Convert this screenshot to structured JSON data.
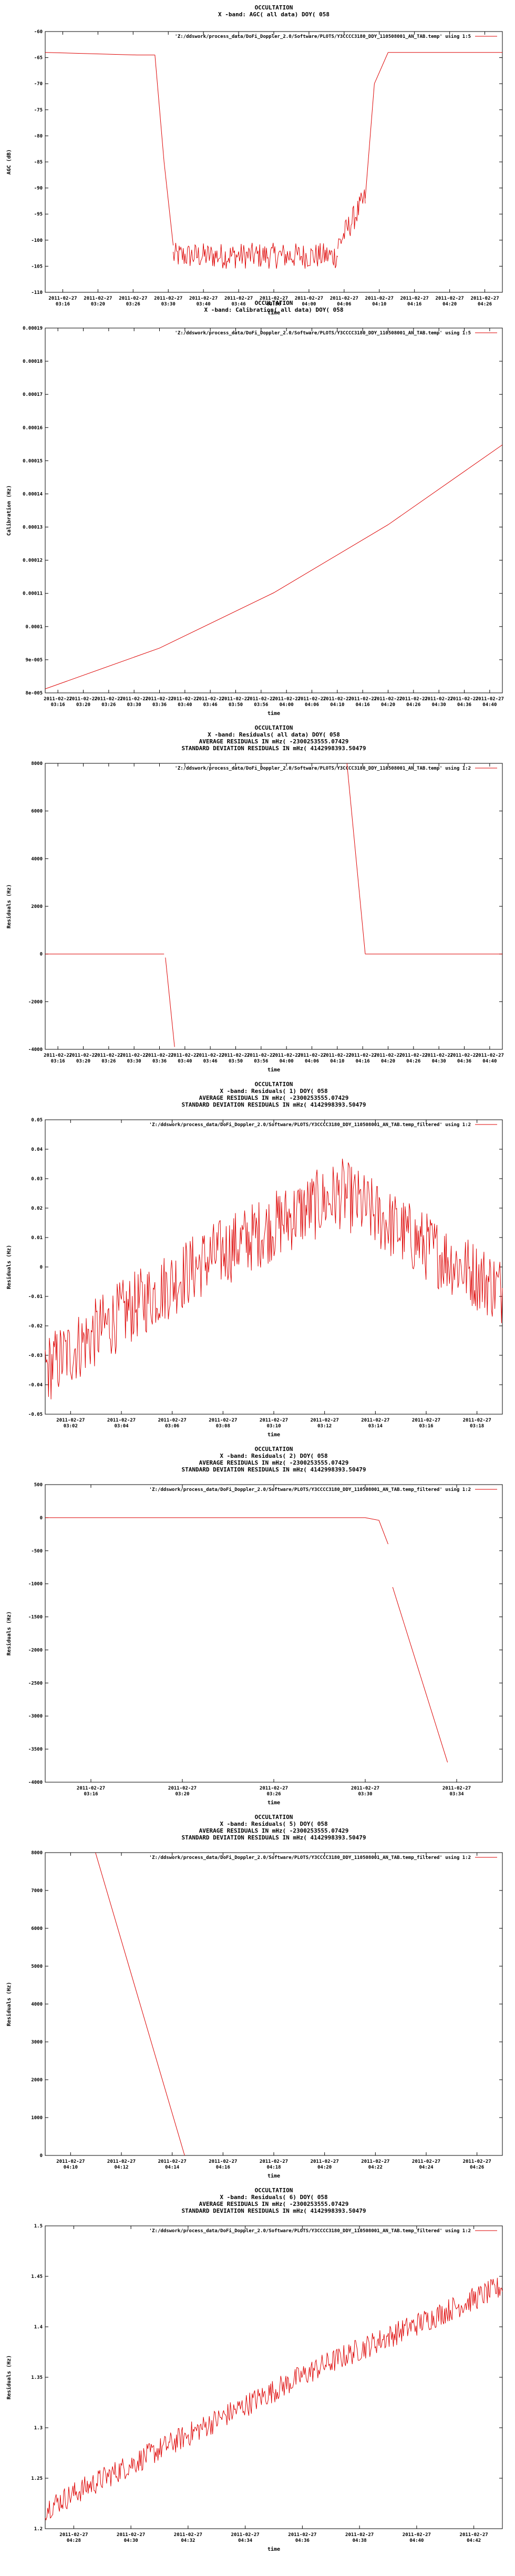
{
  "chart_data": [
    {
      "type": "line",
      "title_lines": [
        "OCCULTATION",
        "X -band: AGC( all data) DOY( 058"
      ],
      "xlabel": "time",
      "ylabel": "AGC (dB)",
      "legend_label": "'Z:/ddswork/process_data/DoFi_Doppler_2.0/Software/PLOTS/Y3CCCC3180_DDY_110508001_AN_TAB.temp' using 1:5",
      "x_tick_labels": [
        [
          "2011-02-27",
          "03:16"
        ],
        [
          "2011-02-27",
          "03:20"
        ],
        [
          "2011-02-27",
          "03:26"
        ],
        [
          "2011-02-27",
          "03:30"
        ],
        [
          "2011-02-27",
          "03:40"
        ],
        [
          "2011-02-27",
          "03:46"
        ],
        [
          "2011-02-27",
          "03:56"
        ],
        [
          "2011-02-27",
          "04:00"
        ],
        [
          "2011-02-27",
          "04:06"
        ],
        [
          "2011-02-27",
          "04:10"
        ],
        [
          "2011-02-27",
          "04:16"
        ],
        [
          "2011-02-27",
          "04:20"
        ],
        [
          "2011-02-27",
          "04:26"
        ]
      ],
      "y_tick_labels": [
        "-110",
        "-105",
        "-100",
        "-95",
        "-90",
        "-85",
        "-80",
        "-75",
        "-70",
        "-65",
        "-60"
      ],
      "ylim": [
        -110,
        -60
      ],
      "series": [
        {
          "segments": [
            {
              "x": [
                0.0,
                0.2,
                0.24
              ],
              "y": [
                -64,
                -64.5,
                -64.5
              ]
            },
            {
              "x": [
                0.24,
                0.26,
                0.28
              ],
              "y": [
                -64.5,
                -85,
                -101
              ]
            },
            {
              "x": [
                0.28,
                0.64
              ],
              "y": [
                -103,
                -103
              ],
              "noise": 2.5
            },
            {
              "x": [
                0.64,
                0.7
              ],
              "y": [
                -101,
                -92
              ],
              "noise": 2.5
            },
            {
              "x": [
                0.7,
                0.72,
                0.75
              ],
              "y": [
                -92,
                -70,
                -64
              ]
            },
            {
              "x": [
                0.75,
                1.0
              ],
              "y": [
                -64,
                -64
              ]
            }
          ]
        }
      ]
    },
    {
      "type": "line",
      "title_lines": [
        "OCCULTATION",
        "X -band: Calibration( all data) DOY( 058"
      ],
      "xlabel": "time",
      "ylabel": "Calibration (Hz)",
      "legend_label": "'Z:/ddswork/process_data/DoFi_Doppler_2.0/Software/PLOTS/Y3CCCC3180_DDY_110508001_AN_TAB.temp' using 1:5",
      "x_tick_labels": [
        [
          "2011-02-27",
          "03:16"
        ],
        [
          "2011-02-27",
          "03:20"
        ],
        [
          "2011-02-27",
          "03:26"
        ],
        [
          "2011-02-27",
          "03:30"
        ],
        [
          "2011-02-27",
          "03:36"
        ],
        [
          "2011-02-27",
          "03:40"
        ],
        [
          "2011-02-27",
          "03:46"
        ],
        [
          "2011-02-27",
          "03:50"
        ],
        [
          "2011-02-27",
          "03:56"
        ],
        [
          "2011-02-27",
          "04:00"
        ],
        [
          "2011-02-27",
          "04:06"
        ],
        [
          "2011-02-27",
          "04:10"
        ],
        [
          "2011-02-27",
          "04:16"
        ],
        [
          "2011-02-27",
          "04:20"
        ],
        [
          "2011-02-27",
          "04:26"
        ],
        [
          "2011-02-27",
          "04:30"
        ],
        [
          "2011-02-27",
          "04:36"
        ],
        [
          "2011-02-27",
          "04:40"
        ]
      ],
      "y_tick_labels": [
        "8e-005",
        "9e-005",
        "0.0001",
        "0.00011",
        "0.00012",
        "0.00013",
        "0.00014",
        "0.00015",
        "0.00016",
        "0.00017",
        "0.00018",
        "0.00019"
      ],
      "ylim": [
        8e-05,
        0.00019
      ],
      "series": [
        {
          "segments": [
            {
              "x": [
                0.0,
                0.25,
                0.5,
                0.75,
                1.0
              ],
              "y": [
                8.12e-05,
                9.35e-05,
                0.0001102,
                0.0001307,
                0.0001548
              ]
            }
          ]
        }
      ]
    },
    {
      "type": "line",
      "title_lines": [
        "OCCULTATION",
        "X -band: Residuals( all data) DOY( 058",
        "AVERAGE RESIDUALS IN mHz( -2300253555.07429",
        "STANDARD DEVIATION RESIDUALS IN mHz( 4142998393.50479"
      ],
      "xlabel": "time",
      "ylabel": "Residuals (Hz)",
      "legend_label": "'Z:/ddswork/process_data/DoFi_Doppler_2.0/Software/PLOTS/Y3CCCC3180_DDY_110508001_AN_TAB.temp' using 1:2",
      "x_tick_labels": [
        [
          "2011-02-27",
          "03:16"
        ],
        [
          "2011-02-27",
          "03:20"
        ],
        [
          "2011-02-27",
          "03:26"
        ],
        [
          "2011-02-27",
          "03:30"
        ],
        [
          "2011-02-27",
          "03:36"
        ],
        [
          "2011-02-27",
          "03:40"
        ],
        [
          "2011-02-27",
          "03:46"
        ],
        [
          "2011-02-27",
          "03:50"
        ],
        [
          "2011-02-27",
          "03:56"
        ],
        [
          "2011-02-27",
          "04:00"
        ],
        [
          "2011-02-27",
          "04:06"
        ],
        [
          "2011-02-27",
          "04:10"
        ],
        [
          "2011-02-27",
          "04:16"
        ],
        [
          "2011-02-27",
          "04:20"
        ],
        [
          "2011-02-27",
          "04:26"
        ],
        [
          "2011-02-27",
          "04:30"
        ],
        [
          "2011-02-27",
          "04:36"
        ],
        [
          "2011-02-27",
          "04:40"
        ]
      ],
      "y_tick_labels": [
        "-4000",
        "-2000",
        "0",
        "2000",
        "4000",
        "6000",
        "8000"
      ],
      "ylim": [
        -4000,
        8000
      ],
      "series": [
        {
          "segments": [
            {
              "x": [
                0.0,
                0.26
              ],
              "y": [
                0,
                0
              ]
            },
            {
              "x": [
                0.263,
                0.283
              ],
              "y": [
                -150,
                -3900
              ]
            },
            {
              "x": [
                0.66,
                0.7
              ],
              "y": [
                8000,
                0
              ]
            },
            {
              "x": [
                0.7,
                1.0
              ],
              "y": [
                0,
                0
              ]
            }
          ]
        }
      ]
    },
    {
      "type": "line",
      "title_lines": [
        "OCCULTATION",
        "X -band: Residuals( 1) DOY( 058",
        "AVERAGE RESIDUALS IN mHz( -2300253555.07429",
        "STANDARD DEVIATION RESIDUALS IN mHz( 4142998393.50479"
      ],
      "xlabel": "time",
      "ylabel": "Residuals (Hz)",
      "legend_label": "'Z:/ddswork/process_data/DoFi_Doppler_2.0/Software/PLOTS/Y3CCCC3180_DDY_110508001_AN_TAB.temp_filtered' using 1:2",
      "x_tick_labels": [
        [
          "2011-02-27",
          "03:02"
        ],
        [
          "2011-02-27",
          "03:04"
        ],
        [
          "2011-02-27",
          "03:06"
        ],
        [
          "2011-02-27",
          "03:08"
        ],
        [
          "2011-02-27",
          "03:10"
        ],
        [
          "2011-02-27",
          "03:12"
        ],
        [
          "2011-02-27",
          "03:14"
        ],
        [
          "2011-02-27",
          "03:16"
        ],
        [
          "2011-02-27",
          "03:18"
        ]
      ],
      "y_tick_labels": [
        "-0.05",
        "-0.04",
        "-0.03",
        "-0.02",
        "-0.01",
        "0",
        "0.01",
        "0.02",
        "0.03",
        "0.04",
        "0.05"
      ],
      "ylim": [
        -0.05,
        0.05
      ],
      "series": [
        {
          "segments": [
            {
              "x": [
                0.0,
                0.15,
                0.35,
                0.55,
                0.65,
                0.8,
                1.0
              ],
              "y": [
                -0.035,
                -0.018,
                0.002,
                0.018,
                0.025,
                0.01,
                -0.008
              ],
              "noise": 0.012
            }
          ]
        }
      ]
    },
    {
      "type": "line",
      "title_lines": [
        "OCCULTATION",
        "X -band: Residuals( 2) DOY( 058",
        "AVERAGE RESIDUALS IN mHz( -2300253555.07429",
        "STANDARD DEVIATION RESIDUALS IN mHz( 4142998393.50479"
      ],
      "xlabel": "time",
      "ylabel": "Residuals (Hz)",
      "legend_label": "'Z:/ddswork/process_data/DoFi_Doppler_2.0/Software/PLOTS/Y3CCCC3180_DDY_110508001_AN_TAB.temp_filtered' using 1:2",
      "x_tick_labels": [
        [
          "2011-02-27",
          "03:16"
        ],
        [
          "2011-02-27",
          "03:20"
        ],
        [
          "2011-02-27",
          "03:26"
        ],
        [
          "2011-02-27",
          "03:30"
        ],
        [
          "2011-02-27",
          "03:34"
        ]
      ],
      "y_tick_labels": [
        "-4000",
        "-3500",
        "-3000",
        "-2500",
        "-2000",
        "-1500",
        "-1000",
        "-500",
        "0",
        "500"
      ],
      "ylim": [
        -4000,
        500
      ],
      "series": [
        {
          "segments": [
            {
              "x": [
                0.0,
                0.7,
                0.73,
                0.75
              ],
              "y": [
                0,
                0,
                -40,
                -400
              ]
            },
            {
              "x": [
                0.76,
                0.88
              ],
              "y": [
                -1050,
                -3700
              ]
            }
          ]
        }
      ]
    },
    {
      "type": "line",
      "title_lines": [
        "OCCULTATION",
        "X -band: Residuals( 5) DOY( 058",
        "AVERAGE RESIDUALS IN mHz( -2300253555.07429",
        "STANDARD DEVIATION RESIDUALS IN mHz( 4142998393.50479"
      ],
      "xlabel": "time",
      "ylabel": "Residuals (Hz)",
      "legend_label": "'Z:/ddswork/process_data/DoFi_Doppler_2.0/Software/PLOTS/Y3CCCC3180_DDY_110508001_AN_TAB.temp_filtered' using 1:2",
      "x_tick_labels": [
        [
          "2011-02-27",
          "04:10"
        ],
        [
          "2011-02-27",
          "04:12"
        ],
        [
          "2011-02-27",
          "04:14"
        ],
        [
          "2011-02-27",
          "04:16"
        ],
        [
          "2011-02-27",
          "04:18"
        ],
        [
          "2011-02-27",
          "04:20"
        ],
        [
          "2011-02-27",
          "04:22"
        ],
        [
          "2011-02-27",
          "04:24"
        ],
        [
          "2011-02-27",
          "04:26"
        ]
      ],
      "y_tick_labels": [
        "0",
        "1000",
        "2000",
        "3000",
        "4000",
        "5000",
        "6000",
        "7000",
        "8000"
      ],
      "ylim": [
        0,
        8000
      ],
      "series": [
        {
          "segments": [
            {
              "x": [
                0.11,
                0.305
              ],
              "y": [
                8000,
                0
              ]
            }
          ]
        }
      ]
    },
    {
      "type": "line",
      "title_lines": [
        "OCCULTATION",
        "X -band: Residuals( 6) DOY( 058",
        "AVERAGE RESIDUALS IN mHz( -2300253555.07429",
        "STANDARD DEVIATION RESIDUALS IN mHz( 4142998393.50479"
      ],
      "xlabel": "time",
      "ylabel": "Residuals (Hz)",
      "legend_label": "'Z:/ddswork/process_data/DoFi_Doppler_2.0/Software/PLOTS/Y3CCCC3180_DDY_110508001_AN_TAB.temp_filtered' using 1:2",
      "x_tick_labels": [
        [
          "2011-02-27",
          "04:28"
        ],
        [
          "2011-02-27",
          "04:30"
        ],
        [
          "2011-02-27",
          "04:32"
        ],
        [
          "2011-02-27",
          "04:34"
        ],
        [
          "2011-02-27",
          "04:36"
        ],
        [
          "2011-02-27",
          "04:38"
        ],
        [
          "2011-02-27",
          "04:40"
        ],
        [
          "2011-02-27",
          "04:42"
        ]
      ],
      "y_tick_labels": [
        "1.2",
        "1.25",
        "1.3",
        "1.35",
        "1.4",
        "1.45",
        "1.5"
      ],
      "ylim": [
        1.2,
        1.5
      ],
      "series": [
        {
          "segments": [
            {
              "x": [
                0.0,
                0.3,
                0.6,
                1.0
              ],
              "y": [
                1.22,
                1.29,
                1.36,
                1.44
              ],
              "noise": 0.012
            }
          ]
        }
      ]
    }
  ],
  "colors": {
    "line": "#dd0000",
    "border": "#000000",
    "background": "#ffffff"
  }
}
